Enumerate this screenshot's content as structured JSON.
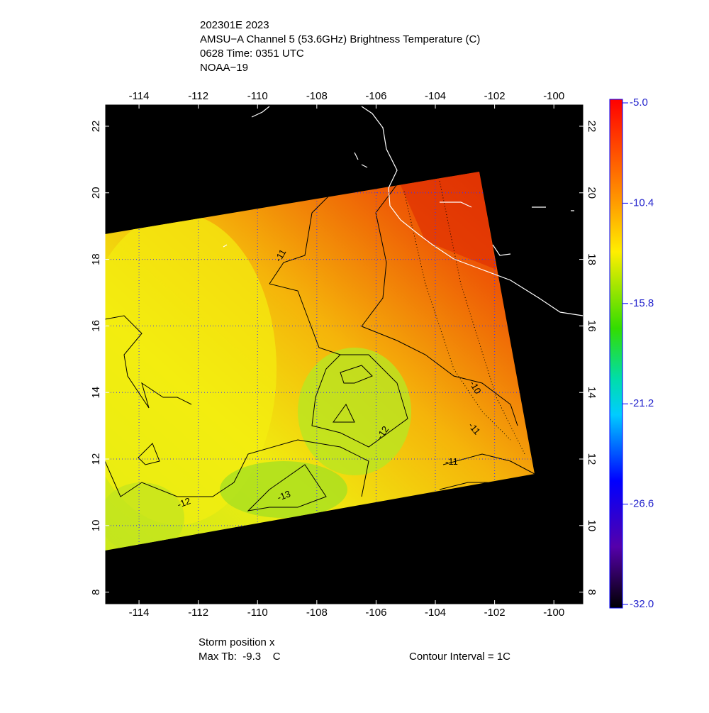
{
  "map": {
    "title_lines": [
      "202301E 2023",
      "AMSU−A Channel 5 (53.6GHz) Brightness Temperature (C)",
      "0628 Time: 0351 UTC",
      "NOAA−19"
    ],
    "xlim": [
      -115.15,
      -99.0
    ],
    "ylim": [
      7.63,
      22.66
    ],
    "xticks": [
      -114,
      -112,
      -110,
      -108,
      -106,
      -104,
      -102,
      -100
    ],
    "yticks": [
      8,
      10,
      12,
      14,
      16,
      18,
      20,
      22
    ],
    "colorbar": {
      "lim": [
        -32,
        -5
      ],
      "ticks": [
        {
          "value": -5,
          "label": "-5.0"
        },
        -10.4,
        -15.8,
        -21.2,
        -26.6,
        {
          "value": -32,
          "label": "-32.0"
        }
      ]
    },
    "contour_labels": [
      "-11",
      "-10",
      "-11",
      "-11",
      "-12",
      "-12",
      "-13"
    ],
    "footer": {
      "storm": "Storm position x",
      "max_tb": "Max Tb:  -9.3    C",
      "interval": "Contour Interval = 1C"
    }
  }
}
